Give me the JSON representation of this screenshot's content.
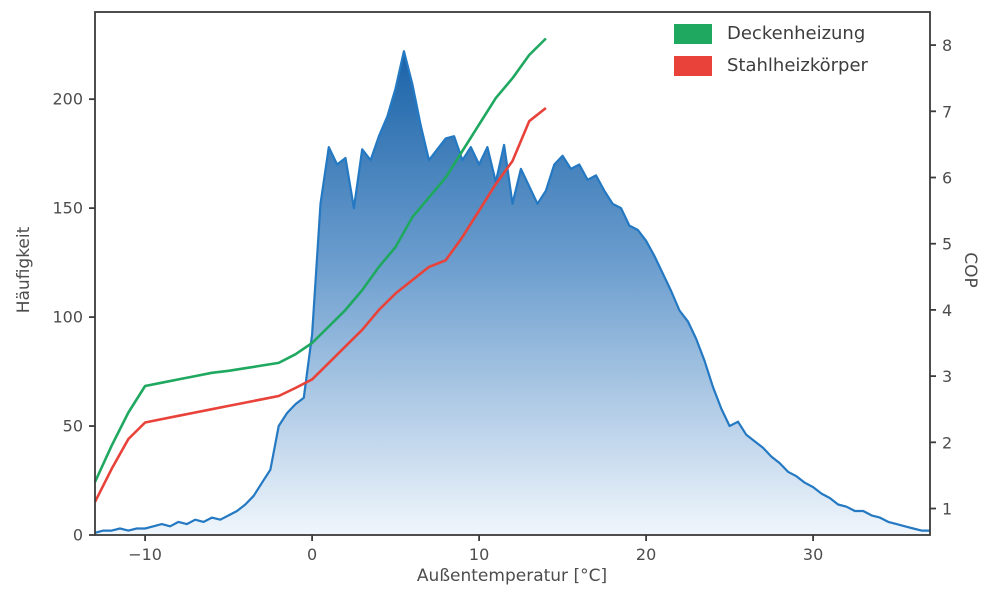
{
  "figure": {
    "background": "#ffffff",
    "text_color": "#4d4d4d",
    "spine_color": "#3b3b3b"
  },
  "axes": {
    "x_label": "Außentemperatur [°C]",
    "y_left_label": "Häufigkeit",
    "y_right_label": "COP",
    "x_ticks": [
      {
        "value": -10,
        "label": "−10"
      },
      {
        "value": 0,
        "label": "0"
      },
      {
        "value": 10,
        "label": "10"
      },
      {
        "value": 20,
        "label": "20"
      },
      {
        "value": 30,
        "label": "30"
      }
    ],
    "y_left_ticks": [
      {
        "value": 0,
        "label": "0"
      },
      {
        "value": 50,
        "label": "50"
      },
      {
        "value": 100,
        "label": "100"
      },
      {
        "value": 150,
        "label": "150"
      },
      {
        "value": 200,
        "label": "200"
      }
    ],
    "y_right_ticks": [
      {
        "value": 1,
        "label": "1"
      },
      {
        "value": 2,
        "label": "2"
      },
      {
        "value": 3,
        "label": "3"
      },
      {
        "value": 4,
        "label": "4"
      },
      {
        "value": 5,
        "label": "5"
      },
      {
        "value": 6,
        "label": "6"
      },
      {
        "value": 7,
        "label": "7"
      },
      {
        "value": 8,
        "label": "8"
      }
    ]
  },
  "chart_data": {
    "type": "area",
    "title": "",
    "xlabel": "Außentemperatur [°C]",
    "ylabel_left": "Häufigkeit",
    "ylabel_right": "COP",
    "xlim": [
      -13,
      37
    ],
    "ylim_left": [
      0,
      240
    ],
    "ylim_right": [
      0.6,
      8.5
    ],
    "grid": false,
    "legend_position": "upper right",
    "histogram": {
      "name": "Häufigkeit",
      "axis": "left",
      "line_color": "#2479c2",
      "fill_gradient": [
        {
          "offset": 0,
          "color": "#1a63a8"
        },
        {
          "offset": 0.45,
          "color": "#6e9fcf"
        },
        {
          "offset": 1,
          "color": "#f0f6fc"
        }
      ],
      "x_start": -13,
      "x_step": 0.5,
      "values": [
        1,
        2,
        2,
        3,
        2,
        3,
        3,
        4,
        5,
        4,
        6,
        5,
        7,
        6,
        8,
        7,
        9,
        11,
        14,
        18,
        24,
        30,
        50,
        56,
        60,
        63,
        92,
        152,
        178,
        170,
        173,
        150,
        177,
        172,
        183,
        192,
        205,
        222,
        207,
        188,
        172,
        177,
        182,
        183,
        172,
        178,
        170,
        178,
        162,
        179,
        152,
        168,
        160,
        152,
        158,
        170,
        174,
        168,
        170,
        163,
        165,
        158,
        152,
        150,
        142,
        140,
        135,
        128,
        120,
        112,
        103,
        98,
        90,
        80,
        68,
        58,
        50,
        52,
        46,
        43,
        40,
        36,
        33,
        29,
        27,
        24,
        22,
        19,
        17,
        14,
        13,
        11,
        11,
        9,
        8,
        6,
        5,
        4,
        3,
        2,
        2
      ]
    },
    "series": [
      {
        "name": "Deckenheizung",
        "axis": "right",
        "color": "#1fa860",
        "x": [
          -13,
          -12,
          -11,
          -10,
          -9,
          -8,
          -7,
          -6,
          -5,
          -4,
          -3,
          -2,
          -1,
          0,
          1,
          2,
          3,
          4,
          5,
          6,
          7,
          8,
          9,
          10,
          11,
          12,
          13,
          14
        ],
        "values": [
          1.4,
          1.95,
          2.45,
          2.85,
          2.9,
          2.95,
          3.0,
          3.05,
          3.08,
          3.12,
          3.16,
          3.2,
          3.33,
          3.5,
          3.75,
          4.0,
          4.3,
          4.65,
          4.95,
          5.4,
          5.7,
          6.0,
          6.4,
          6.8,
          7.2,
          7.5,
          7.85,
          8.1
        ]
      },
      {
        "name": "Stahlheizkörper",
        "axis": "right",
        "color": "#e8423a",
        "x": [
          -13,
          -12,
          -11,
          -10,
          -9,
          -8,
          -7,
          -6,
          -5,
          -4,
          -3,
          -2,
          -1,
          0,
          1,
          2,
          3,
          4,
          5,
          6,
          7,
          8,
          9,
          10,
          11,
          12,
          13,
          14
        ],
        "values": [
          1.1,
          1.6,
          2.05,
          2.3,
          2.35,
          2.4,
          2.45,
          2.5,
          2.55,
          2.6,
          2.65,
          2.7,
          2.82,
          2.95,
          3.2,
          3.45,
          3.7,
          4.0,
          4.25,
          4.45,
          4.65,
          4.75,
          5.1,
          5.5,
          5.9,
          6.25,
          6.85,
          7.05
        ]
      }
    ]
  }
}
